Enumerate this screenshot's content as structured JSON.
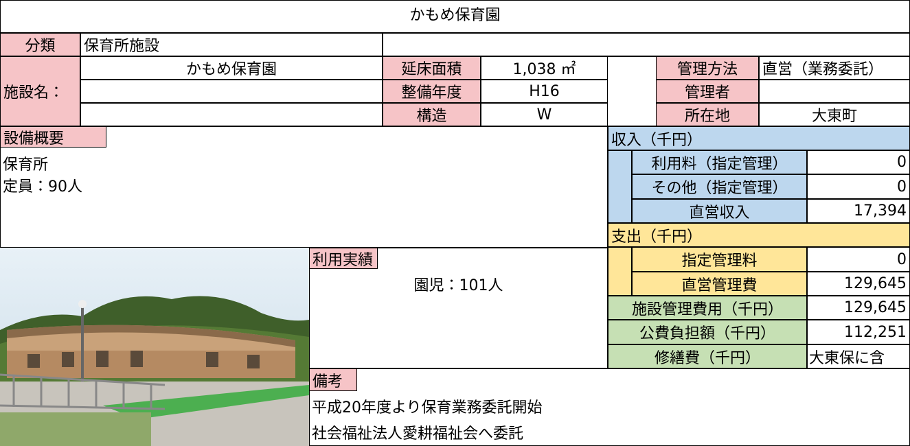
{
  "title": "かもめ保育園",
  "classification": {
    "label": "分類",
    "value": "保育所施設"
  },
  "facility_name": {
    "label": "施設名：",
    "value": "かもめ保育園"
  },
  "attributes": [
    {
      "label": "延床面積",
      "value": "1,038 ㎡"
    },
    {
      "label": "整備年度",
      "value": "H16"
    },
    {
      "label": "構造",
      "value": "W"
    }
  ],
  "management": [
    {
      "label": "管理方法",
      "value": "直営（業務委託）"
    },
    {
      "label": "管理者"
    },
    {
      "label": "所在地",
      "value": "大東町"
    }
  ],
  "equipment": {
    "label": "設備概要",
    "lines": [
      "保育所",
      "定員：90人"
    ]
  },
  "income": {
    "header": "収入（千円）",
    "rows": [
      {
        "label": "利用料（指定管理）",
        "value": "0"
      },
      {
        "label": "その他（指定管理）",
        "value": "0"
      },
      {
        "label": "直営収入",
        "value": "17,394"
      }
    ]
  },
  "expense": {
    "header": "支出（千円）",
    "rows": [
      {
        "label": "指定管理料",
        "value": "0"
      },
      {
        "label": "直営管理費",
        "value": "129,645"
      }
    ]
  },
  "totals": [
    {
      "label": "施設管理費用（千円）",
      "value": "129,645"
    },
    {
      "label": "公費負担額（千円）",
      "value": "112,251"
    },
    {
      "label": "修繕費（千円）",
      "value": "大東保に含"
    }
  ],
  "usage": {
    "label": "利用実績",
    "value": "園児：101人"
  },
  "remarks": {
    "label": "備考",
    "lines": [
      "平成20年度より保育業務委託開始",
      "社会福祉法人愛耕福祉会へ委託"
    ]
  }
}
